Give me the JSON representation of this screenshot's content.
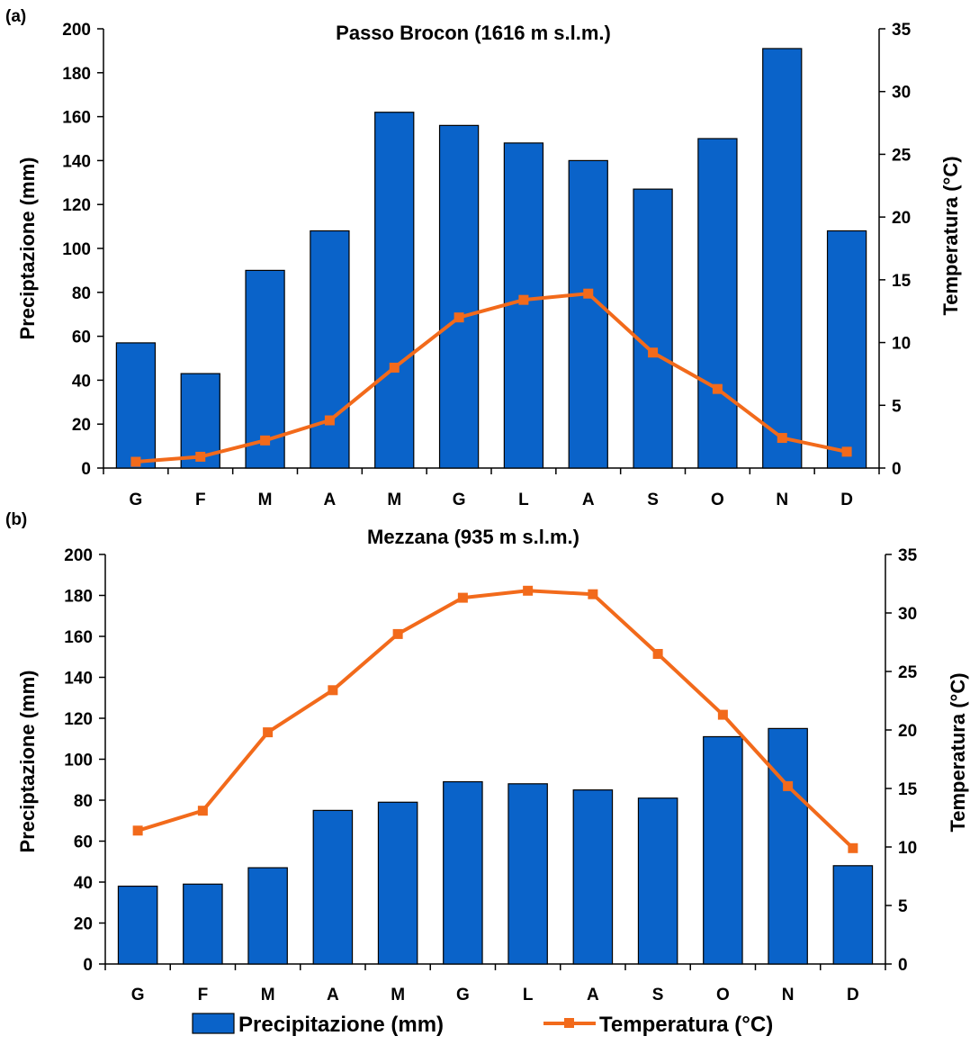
{
  "chart_data": [
    {
      "panel_label": "(a)",
      "type": "bar",
      "title": "Passo Brocon (1616 m s.l.m.)",
      "categories": [
        "G",
        "F",
        "M",
        "A",
        "M",
        "G",
        "L",
        "A",
        "S",
        "O",
        "N",
        "D"
      ],
      "ylabel": "Preciptazione (mm)",
      "y2label": "Temperatura (°C)",
      "ylim": [
        0,
        200
      ],
      "y2lim": [
        0,
        35
      ],
      "yticks": [
        "0",
        "20",
        "40",
        "60",
        "80",
        "100",
        "120",
        "140",
        "160",
        "180",
        "200"
      ],
      "y2ticks": [
        "0",
        "5",
        "10",
        "15",
        "20",
        "25",
        "30",
        "35"
      ],
      "series": [
        {
          "name": "Precipitazione (mm)",
          "type": "bar",
          "axis": "left",
          "values": [
            57,
            43,
            90,
            108,
            162,
            156,
            148,
            140,
            127,
            150,
            191,
            108
          ]
        },
        {
          "name": "Temperatura (°C)",
          "type": "line",
          "axis": "right",
          "values": [
            0.5,
            0.9,
            2.2,
            3.8,
            8.0,
            12.0,
            13.4,
            13.9,
            9.2,
            6.3,
            2.4,
            1.3
          ]
        }
      ]
    },
    {
      "panel_label": "(b)",
      "type": "bar",
      "title": "Mezzana (935 m s.l.m.)",
      "categories": [
        "G",
        "F",
        "M",
        "A",
        "M",
        "G",
        "L",
        "A",
        "S",
        "O",
        "N",
        "D"
      ],
      "ylabel": "Preciptazione (mm)",
      "y2label": "Temperatura (°C)",
      "ylim": [
        0,
        200
      ],
      "y2lim": [
        0,
        35
      ],
      "yticks": [
        "0",
        "20",
        "40",
        "60",
        "80",
        "100",
        "120",
        "140",
        "160",
        "180",
        "200"
      ],
      "y2ticks": [
        "0",
        "5",
        "10",
        "15",
        "20",
        "25",
        "30",
        "35"
      ],
      "series": [
        {
          "name": "Precipitazione (mm)",
          "type": "bar",
          "axis": "left",
          "values": [
            38,
            39,
            47,
            75,
            79,
            89,
            88,
            85,
            81,
            111,
            115,
            48
          ]
        },
        {
          "name": "Temperatura (°C)",
          "type": "line",
          "axis": "right",
          "values": [
            11.4,
            13.1,
            19.8,
            23.4,
            28.2,
            31.3,
            31.9,
            31.6,
            26.5,
            21.3,
            15.2,
            9.9
          ]
        }
      ]
    }
  ],
  "legend": {
    "bar_label": "Precipitazione (mm)",
    "line_label": "Temperatura (°C)",
    "placement": "bottom"
  },
  "colors": {
    "bar_fill": "#0A63C9",
    "bar_stroke": "#000000",
    "line": "#F26A1B",
    "axis": "#000000"
  }
}
